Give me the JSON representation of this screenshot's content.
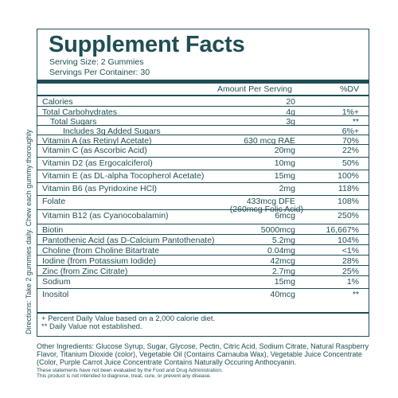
{
  "title": "Supplement Facts",
  "serving_size": "Serving Size: 2 Gummies",
  "servings_per_container": "Servings Per Container: 30",
  "header": {
    "amount": "Amount Per Serving",
    "dv": "%DV"
  },
  "rows": [
    {
      "name": "Calories",
      "amount": "20",
      "dv": ""
    },
    {
      "name": "Total Carbohydrates",
      "amount": "4g",
      "dv": "1%+"
    },
    {
      "name": "Total Sugars",
      "amount": "3g",
      "dv": "**"
    },
    {
      "name": "Includes 3g Added Sugars",
      "amount": "",
      "dv": "6%+"
    },
    {
      "name": "Vitamin A (as Retinyl Acetate)",
      "amount": "630 mcg RAE",
      "dv": "70%"
    },
    {
      "name": "Vitamin C (as Ascorbic Acid)",
      "amount": "20mg",
      "dv": "22%"
    },
    {
      "name": "Vitamin D2 (as Ergocalciferol)",
      "amount": "10mg",
      "dv": "50%"
    },
    {
      "name": "Vitamin E (as DL-alpha Tocopherol Acetate)",
      "amount": "15mg",
      "dv": "100%"
    },
    {
      "name": "Vitamin B6 (as Pyridoxine HCl)",
      "amount": "2mg",
      "dv": "118%"
    },
    {
      "name": "Folate",
      "amount": "433mcg DFE",
      "amount2": "(260mcg Folic Acid)",
      "dv": "108%"
    },
    {
      "name": "Vitamin B12 (as Cyanocobalamin)",
      "amount": "6mcg",
      "dv": "250%"
    },
    {
      "name": "Biotin",
      "amount": "5000mcg",
      "dv": "16,667%"
    },
    {
      "name": "Pantothenic Acid (as D-Calcium Pantothenate)",
      "amount": "5.2mg",
      "dv": "104%"
    },
    {
      "name": "Choline (from Choline Bitartrate",
      "amount": "0.04mg",
      "dv": "<1%"
    },
    {
      "name": "Iodine (from Potassium Iodide)",
      "amount": "42mcg",
      "dv": "28%"
    },
    {
      "name": "Zinc (from Zinc Citrate)",
      "amount": "2.7mg",
      "dv": "25%"
    },
    {
      "name": "Sodium",
      "amount": "15mg",
      "dv": "1%"
    },
    {
      "name": "Inositol",
      "amount": "40mcg",
      "dv": "**"
    }
  ],
  "footnotes": [
    "+ Percent Daily Value based on a 2,000 calorie diet.",
    "** Daily Value not established."
  ],
  "side_text": "Directions: Take 2 gummies daily. Chew each gummy thoroughly",
  "other_ingredients": "Other Ingredients: Glucose Syrup, Sugar, Glycose, Pectin, Citric Acid, Sodium Citrate, Natural Raspberry Flavor, Titanium Dioxide (color), Vegetable Oil (Contains Carnauba Wax), Vegetable Juice Concentrate (Color, Purple Carrot Juice Concentrate Contains Naturally Occuring Anthocyanin.",
  "disclaimer_1": "These statements have not been evaluated by the Food and Drug Administration.",
  "disclaimer_2": "This product is not intended to diagnose, treat, cure, or prevent any disease.",
  "colors": {
    "ink": "#1f4e55",
    "background": "#ffffff"
  }
}
